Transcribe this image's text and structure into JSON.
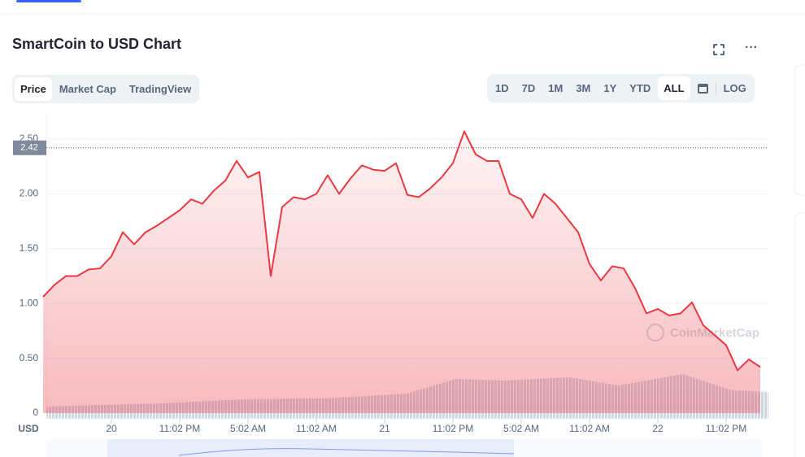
{
  "header": {
    "title": "SmartCoin to USD Chart"
  },
  "tabs": [
    "Price",
    "Market Cap",
    "TradingView"
  ],
  "active_tab": 0,
  "ranges": [
    "1D",
    "7D",
    "1M",
    "3M",
    "1Y",
    "YTD",
    "ALL"
  ],
  "active_range": 6,
  "log": "LOG",
  "chart_data": {
    "type": "line",
    "categories": [
      null,
      null,
      null,
      null,
      null,
      null,
      "20",
      null,
      null,
      null,
      null,
      null,
      "11:02 PM",
      null,
      null,
      null,
      null,
      null,
      "5:02 AM",
      null,
      null,
      null,
      null,
      null,
      "11:02 AM",
      null,
      null,
      null,
      null,
      null,
      "21",
      null,
      null,
      null,
      null,
      null,
      "11:02 PM",
      null,
      null,
      null,
      null,
      null,
      "5:02 AM",
      null,
      null,
      null,
      null,
      null,
      "11:02 AM",
      null,
      null,
      null,
      null,
      null,
      "22",
      null,
      null,
      null,
      null,
      null,
      "11:02 PM",
      null,
      null,
      null
    ],
    "series": [
      {
        "name": "Price",
        "color": "#ea3943",
        "values": [
          1.06,
          1.17,
          1.25,
          1.25,
          1.31,
          1.32,
          1.43,
          1.65,
          1.54,
          1.65,
          1.71,
          1.78,
          1.85,
          1.95,
          1.91,
          2.03,
          2.12,
          2.3,
          2.15,
          2.2,
          1.25,
          1.88,
          1.97,
          1.95,
          2.0,
          2.17,
          2.0,
          2.14,
          2.26,
          2.22,
          2.21,
          2.28,
          1.99,
          1.97,
          2.05,
          2.15,
          2.28,
          2.57,
          2.36,
          2.3,
          2.3,
          2.0,
          1.95,
          1.78,
          2.0,
          1.91,
          1.78,
          1.65,
          1.36,
          1.21,
          1.34,
          1.32,
          1.14,
          0.91,
          0.95,
          0.89,
          0.91,
          1.01,
          0.8,
          0.71,
          0.62,
          0.39,
          0.49,
          0.42
        ]
      }
    ],
    "ylim": [
      0,
      2.5
    ],
    "yticks": [
      0,
      {
        "value": 0.5,
        "label": "0.50"
      },
      {
        "value": 1,
        "label": "1.00"
      },
      {
        "value": 1.5,
        "label": "1.50"
      },
      {
        "value": 2,
        "label": "2.00"
      },
      {
        "value": 2.5,
        "label": "2.50"
      }
    ],
    "current_price": 2.42,
    "x_axis_label": "USD",
    "watermark": "CoinMarketCap",
    "grid": true
  }
}
